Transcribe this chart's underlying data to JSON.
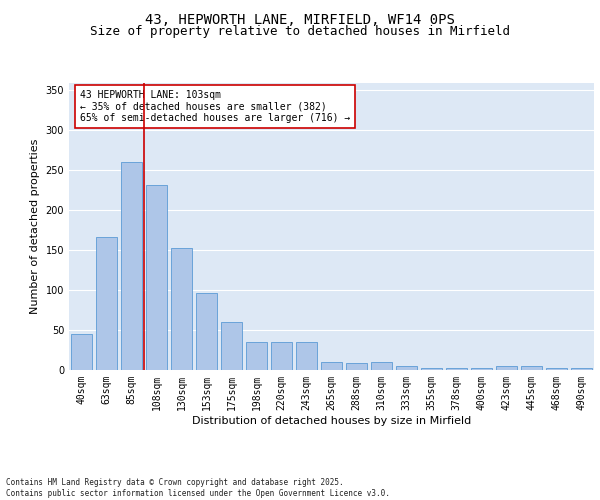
{
  "title_line1": "43, HEPWORTH LANE, MIRFIELD, WF14 0PS",
  "title_line2": "Size of property relative to detached houses in Mirfield",
  "xlabel": "Distribution of detached houses by size in Mirfield",
  "ylabel": "Number of detached properties",
  "categories": [
    "40sqm",
    "63sqm",
    "85sqm",
    "108sqm",
    "130sqm",
    "153sqm",
    "175sqm",
    "198sqm",
    "220sqm",
    "243sqm",
    "265sqm",
    "288sqm",
    "310sqm",
    "333sqm",
    "355sqm",
    "378sqm",
    "400sqm",
    "423sqm",
    "445sqm",
    "468sqm",
    "490sqm"
  ],
  "values": [
    45,
    167,
    260,
    232,
    153,
    97,
    60,
    35,
    35,
    35,
    10,
    9,
    10,
    5,
    3,
    3,
    3,
    5,
    5,
    2,
    2
  ],
  "bar_color": "#aec6e8",
  "bar_edge_color": "#5b9bd5",
  "vline_color": "#cc0000",
  "annotation_text": "43 HEPWORTH LANE: 103sqm\n← 35% of detached houses are smaller (382)\n65% of semi-detached houses are larger (716) →",
  "annotation_box_color": "#cc0000",
  "background_color": "#dde8f5",
  "grid_color": "#ffffff",
  "ylim": [
    0,
    360
  ],
  "yticks": [
    0,
    50,
    100,
    150,
    200,
    250,
    300,
    350
  ],
  "footer_text": "Contains HM Land Registry data © Crown copyright and database right 2025.\nContains public sector information licensed under the Open Government Licence v3.0.",
  "title_fontsize": 10,
  "subtitle_fontsize": 9,
  "axis_label_fontsize": 8,
  "tick_fontsize": 7,
  "annotation_fontsize": 7,
  "footer_fontsize": 5.5
}
